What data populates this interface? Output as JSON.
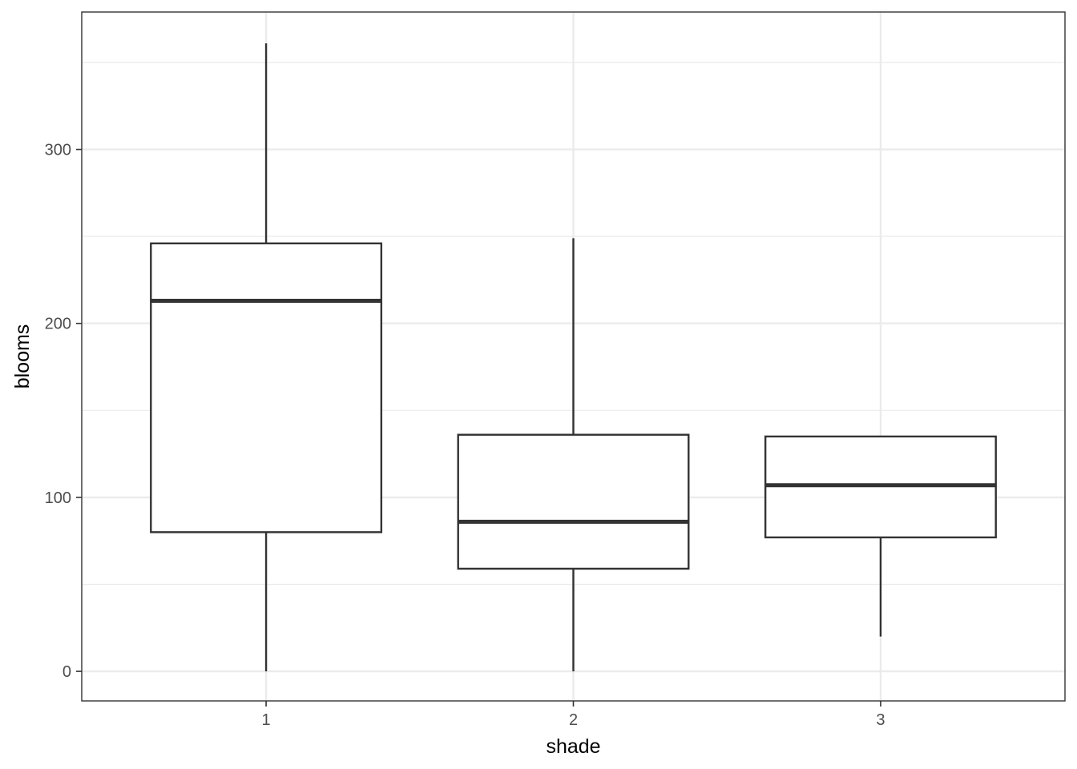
{
  "chart_data": {
    "type": "boxplot",
    "title": "",
    "xlabel": "shade",
    "ylabel": "blooms",
    "categories": [
      "1",
      "2",
      "3"
    ],
    "boxes": [
      {
        "category": "1",
        "whisker_low": 0,
        "q1": 80,
        "median": 213,
        "q3": 246,
        "whisker_high": 361
      },
      {
        "category": "2",
        "whisker_low": 0,
        "q1": 59,
        "median": 86,
        "q3": 136,
        "whisker_high": 249
      },
      {
        "category": "3",
        "whisker_low": 20,
        "q1": 77,
        "median": 107,
        "q3": 135,
        "whisker_high": 135
      }
    ],
    "ylim": [
      -17,
      379
    ],
    "yticks": [
      0,
      100,
      200,
      300
    ],
    "ytick_labels": [
      "0",
      "100",
      "200",
      "300"
    ],
    "grid": true,
    "legend": "none"
  },
  "colors": {
    "grid": "#ebebeb",
    "box": "#333333",
    "panel_border": "#333333",
    "tick_label": "#4d4d4d"
  }
}
